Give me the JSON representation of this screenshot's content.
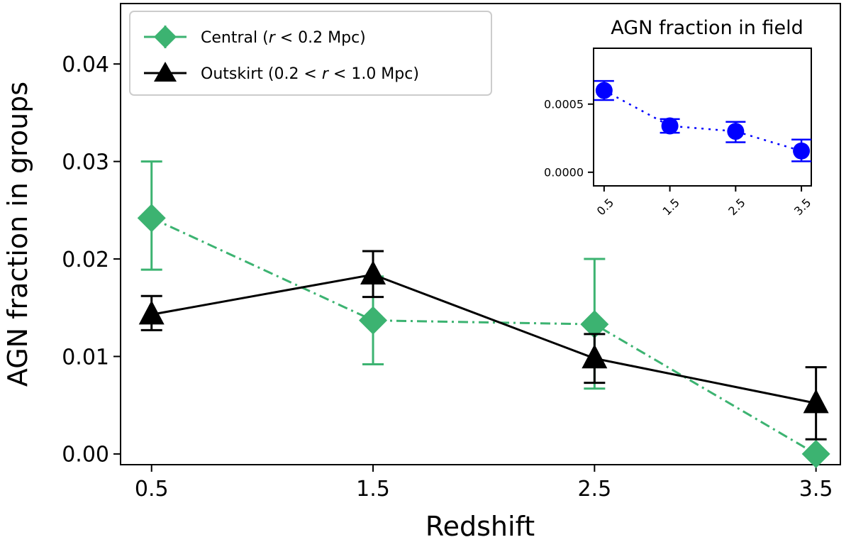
{
  "chart_data": [
    {
      "type": "line",
      "xlabel": "Redshift",
      "ylabel": "AGN fraction in groups",
      "xlim": [
        0.36,
        3.61
      ],
      "ylim": [
        -0.0011,
        0.0462
      ],
      "xticks": [
        0.5,
        1.5,
        2.5,
        3.5
      ],
      "xtick_labels": [
        "0.5",
        "1.5",
        "2.5",
        "3.5"
      ],
      "yticks": [
        0.0,
        0.01,
        0.02,
        0.03,
        0.04
      ],
      "ytick_labels": [
        "0.00",
        "0.01",
        "0.02",
        "0.03",
        "0.04"
      ],
      "grid": false,
      "legend_position": "top-left",
      "series": [
        {
          "name": "Central (r < 0.2 Mpc)",
          "legend_prefix": "Central (",
          "legend_italic": "r",
          "legend_suffix": " < 0.2 Mpc)",
          "color": "#3cb371",
          "marker": "diamond",
          "linestyle": "dashdot",
          "x": [
            0.5,
            1.5,
            2.5,
            3.5
          ],
          "y": [
            0.0242,
            0.0137,
            0.0133,
            0.0
          ],
          "err_low": [
            0.0189,
            0.0092,
            0.0067,
            0.0
          ],
          "err_high": [
            0.03,
            0.0182,
            0.02,
            0.0
          ]
        },
        {
          "name": "Outskirt (0.2 < r < 1.0 Mpc)",
          "legend_prefix": "Outskirt (0.2 < ",
          "legend_italic": "r",
          "legend_suffix": " < 1.0 Mpc)",
          "color": "#000000",
          "marker": "triangle",
          "linestyle": "solid",
          "x": [
            0.5,
            1.5,
            2.5,
            3.5
          ],
          "y": [
            0.0143,
            0.0184,
            0.0098,
            0.0052
          ],
          "err_low": [
            0.0127,
            0.0161,
            0.0073,
            0.0015
          ],
          "err_high": [
            0.0162,
            0.0208,
            0.0123,
            0.0089
          ]
        }
      ]
    },
    {
      "type": "line",
      "title": "AGN fraction in field",
      "xlim": [
        0.34,
        3.65
      ],
      "ylim": [
        -0.0001,
        0.00091
      ],
      "xticks": [
        0.5,
        1.5,
        2.5,
        3.5
      ],
      "xtick_labels": [
        "0.5",
        "1.5",
        "2.5",
        "3.5"
      ],
      "yticks": [
        0.0,
        0.0005
      ],
      "ytick_labels": [
        "0.0000",
        "0.0005"
      ],
      "grid": false,
      "series": [
        {
          "color": "#0000ff",
          "marker": "circle",
          "linestyle": "dotted",
          "x": [
            0.5,
            1.5,
            2.5,
            3.5
          ],
          "y": [
            0.0006,
            0.00034,
            0.0003,
            0.000156
          ],
          "err_low": [
            0.00053,
            0.00029,
            0.00022,
            8e-05
          ],
          "err_high": [
            0.00067,
            0.00039,
            0.00037,
            0.00024
          ]
        }
      ]
    }
  ]
}
